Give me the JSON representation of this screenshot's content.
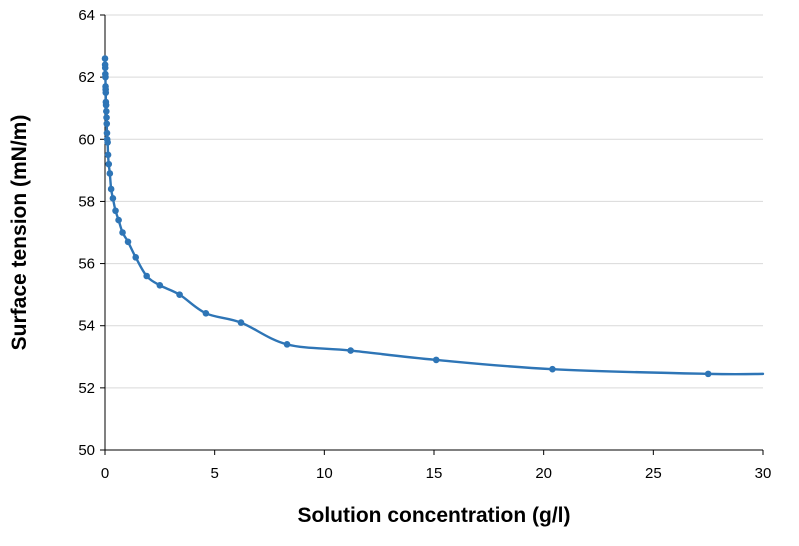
{
  "chart_data": {
    "type": "line",
    "title": "",
    "xlabel": "Solution concentration (g/l)",
    "ylabel": "Surface tension (mN/m)",
    "xlim": [
      0,
      30
    ],
    "ylim": [
      50,
      64
    ],
    "xticks": [
      0,
      5,
      10,
      15,
      20,
      25,
      30
    ],
    "yticks": [
      50,
      52,
      54,
      56,
      58,
      60,
      62,
      64
    ],
    "grid": "horizontal",
    "legend": "none",
    "series_color": "#2e75b6",
    "series": [
      {
        "marker": "circle",
        "smooth": true,
        "x": [
          0.0,
          0.005,
          0.01,
          0.015,
          0.02,
          0.025,
          0.03,
          0.035,
          0.04,
          0.05,
          0.06,
          0.07,
          0.08,
          0.09,
          0.1,
          0.12,
          0.14,
          0.17,
          0.22,
          0.28,
          0.36,
          0.48,
          0.62,
          0.8,
          1.05,
          1.4,
          1.9,
          2.5,
          3.4,
          4.6,
          6.2,
          8.3,
          11.2,
          15.1,
          20.4,
          27.5,
          30.0
        ],
        "y": [
          62.6,
          62.4,
          62.3,
          62.1,
          62.0,
          61.7,
          61.6,
          61.5,
          61.2,
          61.1,
          60.9,
          60.7,
          60.5,
          60.2,
          60.0,
          59.9,
          59.5,
          59.2,
          58.9,
          58.4,
          58.1,
          57.7,
          57.4,
          57.0,
          56.7,
          56.2,
          55.6,
          55.3,
          55.0,
          54.4,
          54.1,
          53.4,
          53.2,
          52.9,
          52.6,
          52.45,
          52.45
        ]
      }
    ]
  }
}
